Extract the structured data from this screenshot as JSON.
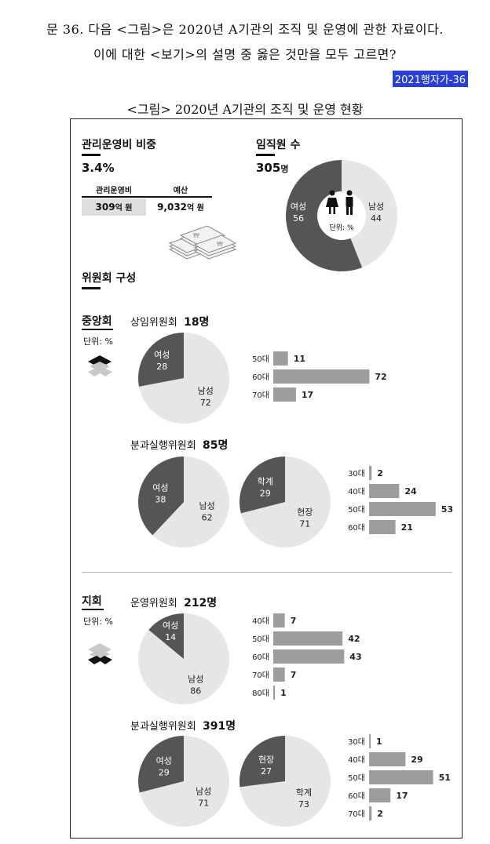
{
  "question": {
    "line1": "문 36. 다음 <그림>은 2020년 A기관의 조직 및 운영에 관한 자료이다.",
    "line2": "이에 대한 <보기>의 설명 중 옳은 것만을 모두 고르면?",
    "tag": "2021행자가-36"
  },
  "figure_title": "<그림> 2020년 A기관의 조직 및 운영 현황",
  "admin_cost": {
    "heading": "관리운영비 비중",
    "ratio": "3.4%",
    "col1_label": "관리운영비",
    "col2_label": "예산",
    "col1_value": "309",
    "col1_unit": "억 원",
    "col2_value": "9,032",
    "col2_unit": "억 원"
  },
  "staff": {
    "heading": "임직원 수",
    "count": "305",
    "count_unit": "명",
    "unit_label": "단위: %",
    "female_label": "여성",
    "female_value": "56",
    "male_label": "남성",
    "male_value": "44"
  },
  "committee_heading": "위원회 구성",
  "central": {
    "heading": "중앙회",
    "unit_label": "단위: %",
    "standing_name": "상임위원회",
    "standing_count": "18명",
    "sub_name": "분과실행위원회",
    "sub_count": "85명"
  },
  "branch": {
    "heading": "지회",
    "unit_label": "단위: %",
    "op_name": "운영위원회",
    "op_count": "212명",
    "sub_name": "분과실행위원회",
    "sub_count": "391명"
  },
  "colors": {
    "dark": "#555555",
    "light": "#e6e6e6",
    "bar": "#9d9d9d",
    "tag_bg": "#2b3fd6"
  },
  "chart_data": [
    {
      "type": "pie",
      "id": "staff_gender",
      "labels": [
        "여성",
        "남성"
      ],
      "values": [
        56,
        44
      ]
    },
    {
      "type": "pie",
      "id": "central_standing_gender",
      "labels": [
        "여성",
        "남성"
      ],
      "values": [
        28,
        72
      ]
    },
    {
      "type": "bar",
      "id": "central_standing_age",
      "categories": [
        "50대",
        "60대",
        "70대"
      ],
      "values": [
        11,
        72,
        17
      ]
    },
    {
      "type": "pie",
      "id": "central_sub_gender",
      "labels": [
        "여성",
        "남성"
      ],
      "values": [
        38,
        62
      ]
    },
    {
      "type": "pie",
      "id": "central_sub_field",
      "labels": [
        "학계",
        "현장"
      ],
      "values": [
        29,
        71
      ]
    },
    {
      "type": "bar",
      "id": "central_sub_age",
      "categories": [
        "30대",
        "40대",
        "50대",
        "60대"
      ],
      "values": [
        2,
        24,
        53,
        21
      ]
    },
    {
      "type": "pie",
      "id": "branch_op_gender",
      "labels": [
        "여성",
        "남성"
      ],
      "values": [
        14,
        86
      ]
    },
    {
      "type": "bar",
      "id": "branch_op_age",
      "categories": [
        "40대",
        "50대",
        "60대",
        "70대",
        "80대"
      ],
      "values": [
        7,
        42,
        43,
        7,
        1
      ]
    },
    {
      "type": "pie",
      "id": "branch_sub_gender",
      "labels": [
        "여성",
        "남성"
      ],
      "values": [
        29,
        71
      ]
    },
    {
      "type": "pie",
      "id": "branch_sub_field",
      "labels": [
        "현장",
        "학계"
      ],
      "values": [
        27,
        73
      ]
    },
    {
      "type": "bar",
      "id": "branch_sub_age",
      "categories": [
        "30대",
        "40대",
        "50대",
        "60대",
        "70대"
      ],
      "values": [
        1,
        29,
        51,
        17,
        2
      ]
    }
  ]
}
